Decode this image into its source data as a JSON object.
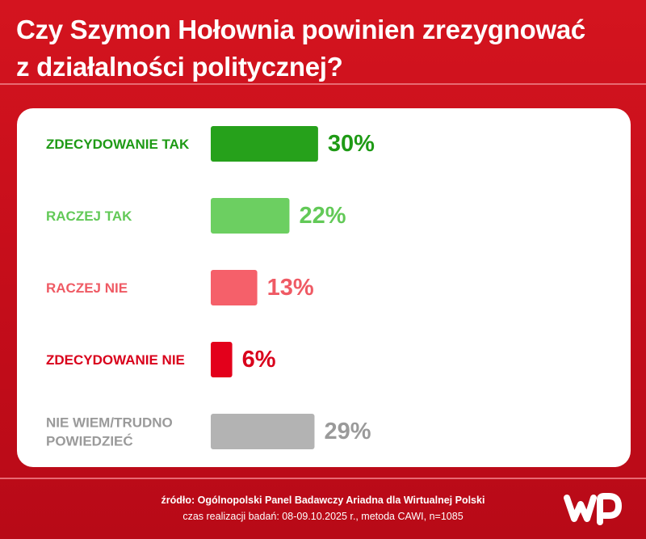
{
  "title": {
    "line1": "Czy Szymon Hołownia powinien zrezygnować",
    "line2": "z działalności politycznej?"
  },
  "chart_data": {
    "type": "bar",
    "orientation": "horizontal",
    "categories": [
      "ZDECYDOWANIE TAK",
      "RACZEJ TAK",
      "RACZEJ NIE",
      "ZDECYDOWANIE NIE",
      "NIE WIEM/TRUDNO POWIEDZIEĆ"
    ],
    "category_lines": [
      [
        "ZDECYDOWANIE TAK"
      ],
      [
        "RACZEJ TAK"
      ],
      [
        "RACZEJ NIE"
      ],
      [
        "ZDECYDOWANIE NIE"
      ],
      [
        "NIE WIEM/TRUDNO",
        "POWIEDZIEĆ"
      ]
    ],
    "values": [
      30,
      22,
      13,
      6,
      29
    ],
    "value_labels": [
      "30%",
      "22%",
      "13%",
      "6%",
      "29%"
    ],
    "colors": [
      "#26a11b",
      "#6ccf61",
      "#f5606a",
      "#e3001b",
      "#b3b3b3"
    ],
    "label_colors": [
      "#1e9a15",
      "#62c957",
      "#ef5a64",
      "#d9001b",
      "#9a9a9a"
    ],
    "unit": "%"
  },
  "footer": {
    "source": "źródło: Ogólnopolski Panel Badawczy Ariadna dla Wirtualnej Polski",
    "details": "czas realizacji badań: 08-09.10.2025 r., metoda CAWI, n=1085"
  },
  "logo": {
    "text": "WP",
    "icon": "wp-logo"
  }
}
